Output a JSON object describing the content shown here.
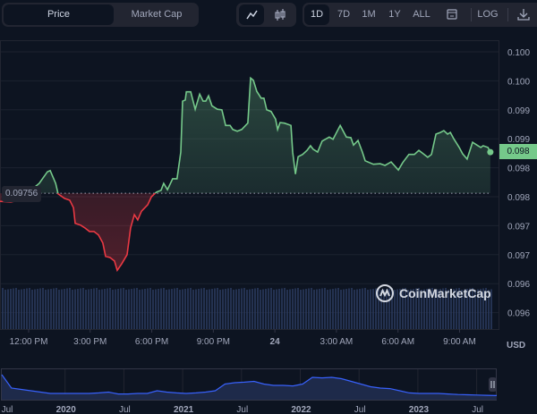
{
  "toolbar": {
    "metric_tabs": [
      {
        "label": "Price",
        "active": true
      },
      {
        "label": "Market Cap",
        "active": false
      }
    ],
    "chart_types": [
      {
        "icon": "line-chart-icon",
        "active": true
      },
      {
        "icon": "candlestick-icon",
        "active": false
      }
    ],
    "ranges": [
      {
        "label": "1D",
        "active": true
      },
      {
        "label": "7D"
      },
      {
        "label": "1M"
      },
      {
        "label": "1Y"
      },
      {
        "label": "ALL"
      }
    ],
    "calendar_icon": "calendar-icon",
    "log_label": "LOG",
    "download_icon": "download-icon"
  },
  "colors": {
    "background": "#0d1421",
    "up": "#75c98a",
    "down": "#ea3943",
    "volume": "#3a4f7a",
    "navigator": "#3861fb"
  },
  "chart_data": {
    "type": "line",
    "title": "",
    "xlabel": "",
    "ylabel": "USD",
    "currency_label": "USD",
    "baseline": 0.09756,
    "baseline_label": "0.09756",
    "current_price_label": "0.098",
    "ylim": [
      0.0953,
      0.1002
    ],
    "y_ticks": [
      {
        "value": 0.1,
        "label": "0.100"
      },
      {
        "value": 0.0995,
        "label": "0.100"
      },
      {
        "value": 0.099,
        "label": "0.099"
      },
      {
        "value": 0.0985,
        "label": "0.099"
      },
      {
        "value": 0.098,
        "label": "0.098"
      },
      {
        "value": 0.0975,
        "label": "0.098"
      },
      {
        "value": 0.097,
        "label": "0.097"
      },
      {
        "value": 0.0965,
        "label": "0.097"
      },
      {
        "value": 0.096,
        "label": "0.096"
      },
      {
        "value": 0.0955,
        "label": "0.096"
      }
    ],
    "x_ticks": [
      {
        "time": "12:00",
        "label": "12:00 PM"
      },
      {
        "time": "15:00",
        "label": "3:00 PM"
      },
      {
        "time": "18:00",
        "label": "6:00 PM"
      },
      {
        "time": "21:00",
        "label": "9:00 PM"
      },
      {
        "time": "24:00",
        "label": "24",
        "bold": true
      },
      {
        "time": "27:00",
        "label": "3:00 AM"
      },
      {
        "time": "30:00",
        "label": "6:00 AM"
      },
      {
        "time": "33:00",
        "label": "9:00 AM"
      }
    ],
    "time": [
      "10:36",
      "11:08",
      "11:34",
      "12:08",
      "12:31",
      "12:55",
      "13:03",
      "13:19",
      "13:26",
      "13:45",
      "14:00",
      "14:11",
      "14:16",
      "14:32",
      "14:45",
      "14:58",
      "15:11",
      "15:24",
      "15:37",
      "15:45",
      "15:58",
      "16:11",
      "16:19",
      "16:32",
      "16:48",
      "16:58",
      "17:09",
      "17:19",
      "17:30",
      "17:48",
      "17:59",
      "18:14",
      "18:27",
      "18:35",
      "18:46",
      "19:01",
      "19:14",
      "19:25",
      "19:30",
      "19:38",
      "19:41",
      "19:54",
      "20:07",
      "20:20",
      "20:30",
      "20:38",
      "20:46",
      "20:56",
      "21:12",
      "21:25",
      "21:36",
      "21:49",
      "21:57",
      "22:10",
      "22:23",
      "22:41",
      "22:49",
      "22:57",
      "23:07",
      "23:20",
      "23:28",
      "23:36",
      "23:49",
      "00:02",
      "00:08",
      "00:15",
      "00:28",
      "00:47",
      "00:52",
      "01:00",
      "01:08",
      "01:21",
      "01:34",
      "01:44",
      "01:52",
      "02:05",
      "02:18",
      "02:39",
      "02:50",
      "03:11",
      "03:29",
      "03:42",
      "03:50",
      "04:03",
      "04:16",
      "04:24",
      "04:48",
      "05:08",
      "05:22",
      "05:40",
      "06:01",
      "06:14",
      "06:32",
      "06:48",
      "07:01",
      "07:14",
      "07:27",
      "07:38",
      "07:51",
      "08:04",
      "08:14",
      "08:25",
      "08:33",
      "08:43",
      "08:59",
      "09:09",
      "09:22",
      "09:38",
      "09:51",
      "10:02",
      "10:09",
      "10:23",
      "10:30"
    ],
    "price": [
      0.09742,
      0.09741,
      0.09744,
      0.09762,
      0.09773,
      0.09793,
      0.09795,
      0.09773,
      0.09755,
      0.09747,
      0.09744,
      0.09731,
      0.09704,
      0.09701,
      0.09696,
      0.0969,
      0.0969,
      0.09684,
      0.0967,
      0.09647,
      0.09645,
      0.09639,
      0.09623,
      0.09634,
      0.0965,
      0.09696,
      0.09719,
      0.0971,
      0.09725,
      0.09736,
      0.0975,
      0.09758,
      0.09761,
      0.09773,
      0.09762,
      0.09781,
      0.09781,
      0.09827,
      0.09915,
      0.09917,
      0.09931,
      0.09931,
      0.09901,
      0.09927,
      0.09915,
      0.09915,
      0.09924,
      0.09907,
      0.09901,
      0.099,
      0.09873,
      0.09873,
      0.09866,
      0.09863,
      0.09866,
      0.09877,
      0.09955,
      0.09951,
      0.09932,
      0.0992,
      0.0992,
      0.099,
      0.09897,
      0.09884,
      0.09866,
      0.09878,
      0.09877,
      0.09873,
      0.09827,
      0.09789,
      0.09819,
      0.09823,
      0.0983,
      0.09838,
      0.09832,
      0.09827,
      0.09846,
      0.09853,
      0.09849,
      0.09873,
      0.09853,
      0.09852,
      0.09839,
      0.09847,
      0.09827,
      0.09812,
      0.09806,
      0.09807,
      0.09804,
      0.0981,
      0.09796,
      0.09809,
      0.09823,
      0.09823,
      0.0983,
      0.09824,
      0.09818,
      0.09823,
      0.09858,
      0.09861,
      0.09864,
      0.09858,
      0.09861,
      0.0985,
      0.09835,
      0.09824,
      0.09815,
      0.09844,
      0.09839,
      0.09835,
      0.09838,
      0.09835,
      0.09827
    ],
    "grid": true,
    "navigator": {
      "labels": [
        {
          "label": "Jul"
        },
        {
          "label": "2020",
          "bold": true
        },
        {
          "label": "Jul"
        },
        {
          "label": "2021",
          "bold": true
        },
        {
          "label": "Jul"
        },
        {
          "label": "2022",
          "bold": true
        },
        {
          "label": "Jul"
        },
        {
          "label": "2023",
          "bold": true
        },
        {
          "label": "Jul"
        }
      ],
      "relative_levels": [
        0.9,
        0.4,
        0.35,
        0.3,
        0.25,
        0.2,
        0.2,
        0.2,
        0.2,
        0.2,
        0.22,
        0.25,
        0.18,
        0.18,
        0.2,
        0.2,
        0.3,
        0.25,
        0.22,
        0.2,
        0.22,
        0.25,
        0.3,
        0.55,
        0.6,
        0.62,
        0.65,
        0.55,
        0.5,
        0.5,
        0.48,
        0.55,
        0.8,
        0.78,
        0.8,
        0.75,
        0.65,
        0.55,
        0.45,
        0.4,
        0.38,
        0.3,
        0.22,
        0.2,
        0.2,
        0.2,
        0.18,
        0.16,
        0.15,
        0.14,
        0.13,
        0.12
      ]
    }
  },
  "watermark": "CoinMarketCap"
}
